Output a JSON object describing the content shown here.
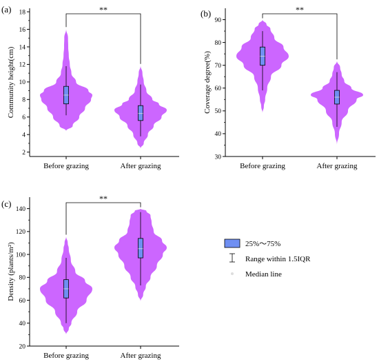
{
  "chart_data": [
    {
      "type": "violin",
      "panel": "(a)",
      "ylabel": "Community height(cm)",
      "ylim": [
        1.5,
        18.4
      ],
      "yticks": [
        2,
        4,
        6,
        8,
        10,
        12,
        14,
        16,
        18
      ],
      "categories": [
        "Before grazing",
        "After grazing"
      ],
      "significance": "**",
      "violins": [
        {
          "category": "Before grazing",
          "min": 4.4,
          "max": 16.1,
          "density": [
            [
              4.4,
              0
            ],
            [
              5,
              0.25
            ],
            [
              6,
              0.5
            ],
            [
              7,
              0.72
            ],
            [
              8,
              0.95
            ],
            [
              8.5,
              1.0
            ],
            [
              9,
              0.85
            ],
            [
              10,
              0.38
            ],
            [
              11,
              0.2
            ],
            [
              12,
              0.14
            ],
            [
              13,
              0.1
            ],
            [
              14,
              0.08
            ],
            [
              15,
              0.07
            ],
            [
              16.1,
              0
            ]
          ],
          "q1": 7.5,
          "q3": 9.5,
          "median": 8.5,
          "whisker_low": 6.2,
          "whisker_high": 11.8
        },
        {
          "category": "After grazing",
          "min": 2.4,
          "max": 11.9,
          "density": [
            [
              2.4,
              0
            ],
            [
              3,
              0.12
            ],
            [
              4,
              0.28
            ],
            [
              5,
              0.5
            ],
            [
              6,
              0.8
            ],
            [
              6.8,
              1.0
            ],
            [
              7.5,
              0.7
            ],
            [
              8,
              0.45
            ],
            [
              9,
              0.22
            ],
            [
              10,
              0.12
            ],
            [
              11,
              0.07
            ],
            [
              11.9,
              0
            ]
          ],
          "q1": 5.6,
          "q3": 7.3,
          "median": 6.4,
          "whisker_low": 3.8,
          "whisker_high": 9.7
        }
      ]
    },
    {
      "type": "violin",
      "panel": "(b)",
      "ylabel": "Coverage degree(%)",
      "ylim": [
        30,
        95
      ],
      "yticks": [
        30,
        40,
        50,
        60,
        70,
        80,
        90
      ],
      "categories": [
        "Before grazing",
        "After grazing"
      ],
      "significance": "**",
      "violins": [
        {
          "category": "Before grazing",
          "min": 49,
          "max": 90,
          "density": [
            [
              49,
              0
            ],
            [
              52,
              0.05
            ],
            [
              55,
              0.1
            ],
            [
              60,
              0.18
            ],
            [
              65,
              0.32
            ],
            [
              70,
              0.72
            ],
            [
              74,
              1.0
            ],
            [
              78,
              0.8
            ],
            [
              82,
              0.45
            ],
            [
              86,
              0.3
            ],
            [
              88,
              0.15
            ],
            [
              90,
              0
            ]
          ],
          "q1": 70,
          "q3": 78,
          "median": 74,
          "whisker_low": 59,
          "whisker_high": 85
        },
        {
          "category": "After grazing",
          "min": 35,
          "max": 72,
          "density": [
            [
              35,
              0
            ],
            [
              40,
              0.08
            ],
            [
              45,
              0.18
            ],
            [
              50,
              0.42
            ],
            [
              55,
              0.75
            ],
            [
              57,
              1.0
            ],
            [
              60,
              0.55
            ],
            [
              63,
              0.28
            ],
            [
              66,
              0.18
            ],
            [
              69,
              0.12
            ],
            [
              72,
              0
            ]
          ],
          "q1": 53,
          "q3": 59,
          "median": 56,
          "whisker_low": 43,
          "whisker_high": 67
        }
      ]
    },
    {
      "type": "violin",
      "panel": "(c)",
      "ylabel": "Density (plants/m²)",
      "ylim": [
        20,
        150
      ],
      "yticks": [
        20,
        40,
        60,
        80,
        100,
        120,
        140
      ],
      "categories": [
        "Before grazing",
        "After grazing"
      ],
      "significance": "**",
      "violins": [
        {
          "category": "Before grazing",
          "min": 30,
          "max": 116,
          "density": [
            [
              30,
              0
            ],
            [
              35,
              0.1
            ],
            [
              40,
              0.2
            ],
            [
              50,
              0.42
            ],
            [
              60,
              0.78
            ],
            [
              70,
              1.0
            ],
            [
              77,
              0.72
            ],
            [
              85,
              0.35
            ],
            [
              95,
              0.18
            ],
            [
              105,
              0.1
            ],
            [
              110,
              0.06
            ],
            [
              116,
              0
            ]
          ],
          "q1": 62,
          "q3": 78,
          "median": 70,
          "whisker_low": 40,
          "whisker_high": 97
        },
        {
          "category": "After grazing",
          "min": 59,
          "max": 140,
          "density": [
            [
              59,
              0
            ],
            [
              65,
              0.1
            ],
            [
              72,
              0.2
            ],
            [
              80,
              0.38
            ],
            [
              90,
              0.62
            ],
            [
              100,
              0.85
            ],
            [
              106,
              1.0
            ],
            [
              112,
              0.82
            ],
            [
              120,
              0.5
            ],
            [
              128,
              0.42
            ],
            [
              134,
              0.38
            ],
            [
              138,
              0.22
            ],
            [
              140,
              0
            ]
          ],
          "q1": 97,
          "q3": 114,
          "median": 105,
          "whisker_low": 73,
          "whisker_high": 137
        }
      ]
    }
  ],
  "legend": {
    "box_label": "25%～75%",
    "range_label": "Range within 1.5IQR",
    "median_label": "Median line"
  },
  "colors": {
    "violin": "#cc66ff",
    "box": "#6f8ff2",
    "axis": "#000000"
  }
}
